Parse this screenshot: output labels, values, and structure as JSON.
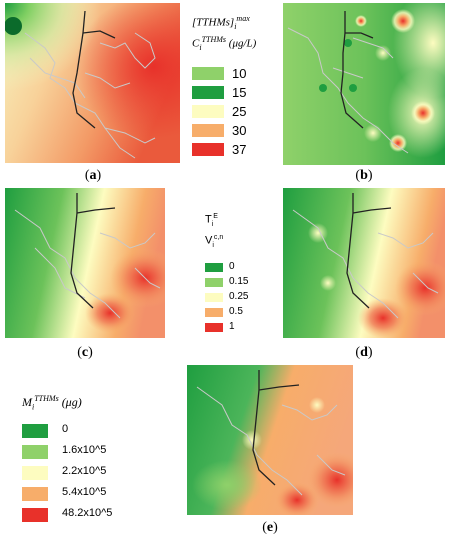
{
  "captions": {
    "a": "a",
    "b": "b",
    "c": "c",
    "d": "d",
    "e": "e"
  },
  "legend_a": {
    "title_line1": "[TTHMs]",
    "title_line1_sub": "i",
    "title_line1_sup": "max",
    "title_line2": "C",
    "title_line2_sub": "i",
    "title_line2_sup": "TTHMs",
    "title_line2_unit": "(μg/L)",
    "items": [
      {
        "label": "10",
        "color": "#8fd16a"
      },
      {
        "label": "15",
        "color": "#1f9e40"
      },
      {
        "label": "25",
        "color": "#fdfcc0"
      },
      {
        "label": "30",
        "color": "#f7ad6a"
      },
      {
        "label": "37",
        "color": "#e8312a"
      }
    ]
  },
  "legend_cd": {
    "title_line1": "T",
    "title_line1_sub": "i",
    "title_line1_sup": "E",
    "title_line2": "V",
    "title_line2_sub": "i",
    "title_line2_sup": "c,n",
    "items": [
      {
        "label": "0",
        "color": "#1f9e40"
      },
      {
        "label": "0.15",
        "color": "#8fd16a"
      },
      {
        "label": "0.25",
        "color": "#fdfcc0"
      },
      {
        "label": "0.5",
        "color": "#f7ad6a"
      },
      {
        "label": "1",
        "color": "#e8312a"
      }
    ]
  },
  "legend_e": {
    "title": "M",
    "title_sub": "i",
    "title_sup": "TTHMs",
    "title_unit": "(μg)",
    "items": [
      {
        "label": "0",
        "color": "#1f9e40"
      },
      {
        "label": "1.6x10^5",
        "color": "#8fd16a"
      },
      {
        "label": "2.2x10^5",
        "color": "#fdfcc0"
      },
      {
        "label": "5.4x10^5",
        "color": "#f7ad6a"
      },
      {
        "label": "48.2x10^5",
        "color": "#e8312a"
      }
    ]
  }
}
